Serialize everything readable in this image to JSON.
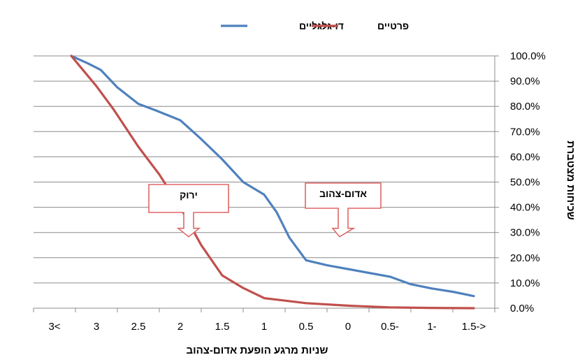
{
  "chart_data": {
    "type": "line",
    "title": "",
    "xlabel": "שניות מרגע הופעת אדום-צהוב",
    "ylabel": "שכיחות מצטברת",
    "categories": [
      "3<",
      "3",
      "2.5",
      "2",
      "1.5",
      "1",
      "0.5",
      "0",
      "0.5-",
      "1-",
      "1.5->"
    ],
    "x_axis_direction": "right-to-left",
    "y_axis_position": "right",
    "ylim": [
      0,
      100
    ],
    "y_ticks": [
      "0.0%",
      "10.0%",
      "20.0%",
      "30.0%",
      "40.0%",
      "50.0%",
      "60.0%",
      "70.0%",
      "80.0%",
      "90.0%",
      "100.0%"
    ],
    "grid": true,
    "legend_position": "top",
    "series": [
      {
        "name": "דו-גלגליים",
        "color": "#4f81bd",
        "points": [
          [
            3.3,
            100
          ],
          [
            3.1,
            97
          ],
          [
            2.95,
            94.5
          ],
          [
            2.85,
            91
          ],
          [
            2.75,
            87.5
          ],
          [
            2.5,
            81
          ],
          [
            2.3,
            78.5
          ],
          [
            2.0,
            74.5
          ],
          [
            1.75,
            67
          ],
          [
            1.5,
            59
          ],
          [
            1.25,
            50
          ],
          [
            1.0,
            45
          ],
          [
            0.85,
            38
          ],
          [
            0.7,
            28
          ],
          [
            0.5,
            19
          ],
          [
            0.25,
            17
          ],
          [
            0.0,
            15.5
          ],
          [
            -0.25,
            14
          ],
          [
            -0.5,
            12.5
          ],
          [
            -0.75,
            9.5
          ],
          [
            -1.0,
            7.8
          ],
          [
            -1.25,
            6.5
          ],
          [
            -1.5,
            4.8
          ]
        ]
      },
      {
        "name": "פרטיים",
        "color": "#c0504d",
        "points": [
          [
            3.3,
            100
          ],
          [
            3.15,
            94
          ],
          [
            3.0,
            88
          ],
          [
            2.8,
            79
          ],
          [
            2.5,
            64
          ],
          [
            2.25,
            53
          ],
          [
            2.0,
            40
          ],
          [
            1.75,
            25
          ],
          [
            1.5,
            13
          ],
          [
            1.25,
            8
          ],
          [
            1.0,
            4
          ],
          [
            0.75,
            3
          ],
          [
            0.5,
            2
          ],
          [
            0.0,
            1
          ],
          [
            -0.5,
            0.3
          ],
          [
            -1.0,
            0.1
          ],
          [
            -1.5,
            0
          ]
        ]
      }
    ],
    "annotations": [
      {
        "text": "ירוק",
        "color": "#e06666",
        "arrow_at": [
          1.9,
          30
        ]
      },
      {
        "text": "אדום-צהוב",
        "color": "#e06666",
        "arrow_at": [
          0.1,
          30
        ]
      }
    ]
  }
}
